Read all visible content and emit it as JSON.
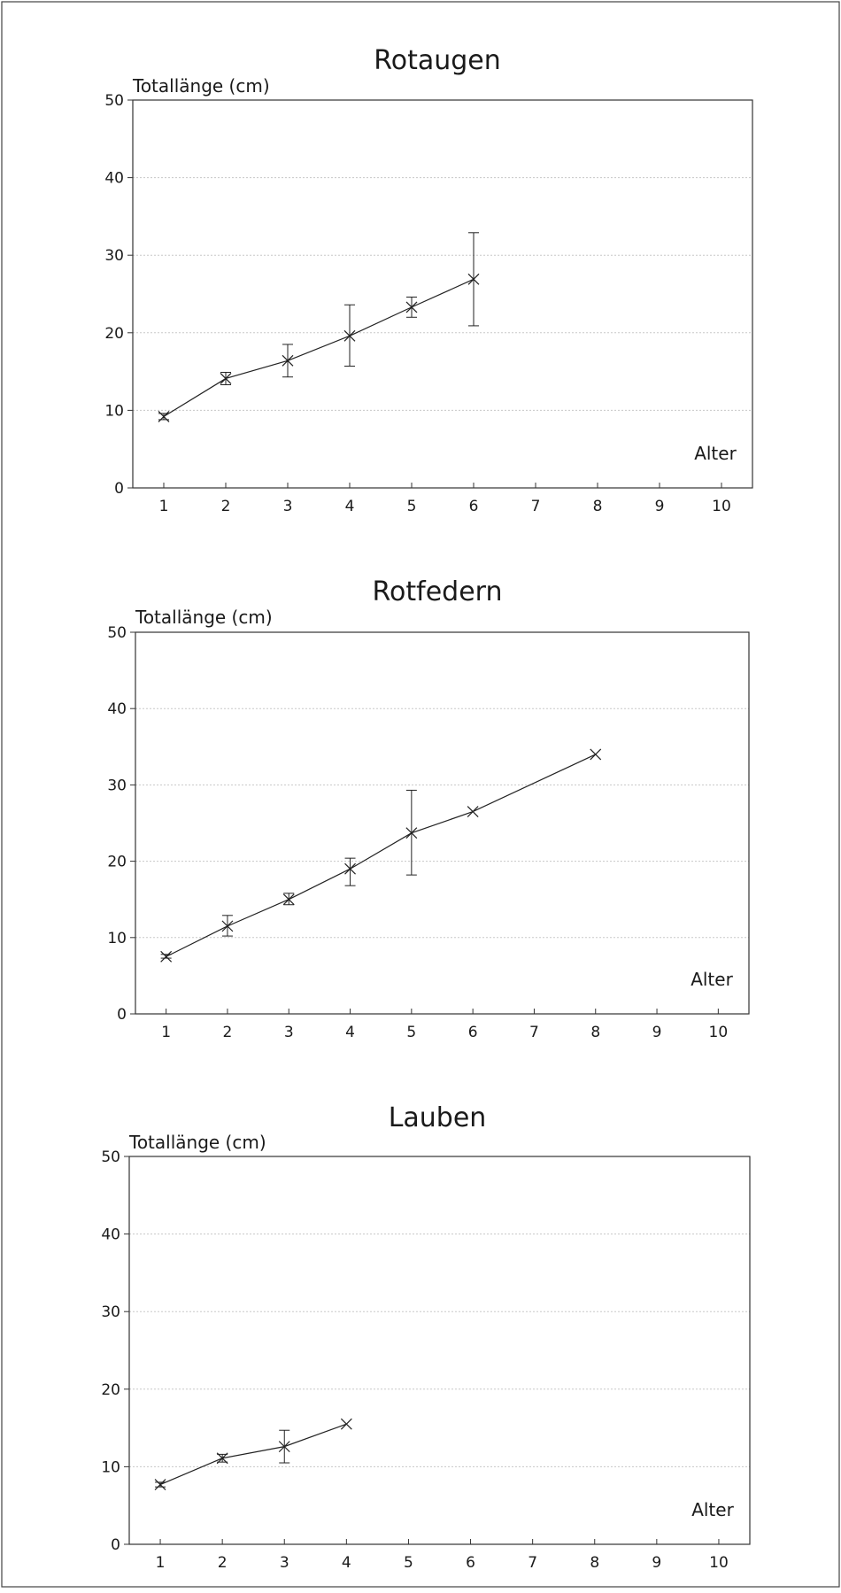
{
  "chart_data": [
    {
      "type": "line",
      "title": "Rotaugen",
      "ylabel": "Totallänge (cm)",
      "xlabel": "Alter",
      "xlim": [
        0.5,
        10.5
      ],
      "ylim": [
        0,
        50
      ],
      "xticks": [
        1,
        2,
        3,
        4,
        5,
        6,
        7,
        8,
        9,
        10
      ],
      "yticks": [
        0,
        10,
        20,
        30,
        40,
        50
      ],
      "grid": true,
      "x": [
        1,
        2,
        3,
        4,
        5,
        6
      ],
      "y": [
        9.2,
        14.1,
        16.4,
        19.6,
        23.3,
        26.9
      ],
      "err_low": [
        8.8,
        13.3,
        14.3,
        15.7,
        22.0,
        20.9
      ],
      "err_high": [
        9.6,
        14.9,
        18.5,
        23.6,
        24.6,
        32.9
      ]
    },
    {
      "type": "line",
      "title": "Rotfedern",
      "ylabel": "Totallänge (cm)",
      "xlabel": "Alter",
      "xlim": [
        0.5,
        10.5
      ],
      "ylim": [
        0,
        50
      ],
      "xticks": [
        1,
        2,
        3,
        4,
        5,
        6,
        7,
        8,
        9,
        10
      ],
      "yticks": [
        0,
        10,
        20,
        30,
        40,
        50
      ],
      "grid": true,
      "x": [
        1,
        2,
        3,
        4,
        5,
        6,
        8
      ],
      "y": [
        7.5,
        11.5,
        15.0,
        19.0,
        23.7,
        26.5,
        34.0
      ],
      "err_low": [
        7.3,
        10.2,
        14.3,
        16.8,
        18.2,
        26.5,
        34.0
      ],
      "err_high": [
        7.8,
        12.9,
        15.8,
        20.4,
        29.3,
        26.5,
        34.0
      ]
    },
    {
      "type": "line",
      "title": "Lauben",
      "ylabel": "Totallänge (cm)",
      "xlabel": "Alter",
      "xlim": [
        0.5,
        10.5
      ],
      "ylim": [
        0,
        50
      ],
      "xticks": [
        1,
        2,
        3,
        4,
        5,
        6,
        7,
        8,
        9,
        10
      ],
      "yticks": [
        0,
        10,
        20,
        30,
        40,
        50
      ],
      "grid": true,
      "x": [
        1,
        2,
        3,
        4
      ],
      "y": [
        7.7,
        11.1,
        12.6,
        15.5
      ],
      "err_low": [
        7.4,
        10.6,
        10.5,
        15.5
      ],
      "err_high": [
        8.0,
        11.6,
        14.7,
        15.5
      ]
    }
  ]
}
